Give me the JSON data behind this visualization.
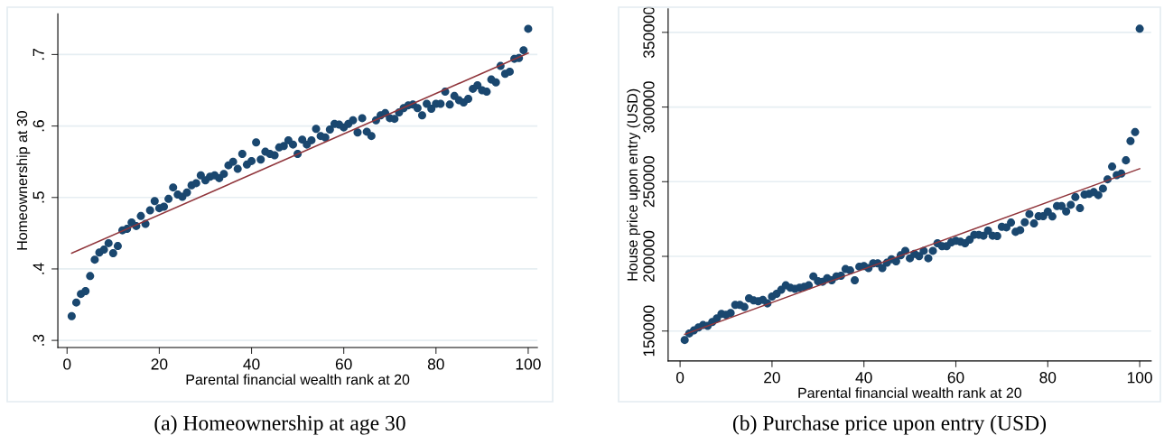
{
  "chart_data": [
    {
      "type": "scatter",
      "title": "(a) Homeownership at age 30",
      "xlabel": "Parental financial wealth rank at 20",
      "ylabel": "Homeownership at 30",
      "xlim": [
        -2,
        102
      ],
      "xticks": [
        0,
        20,
        40,
        60,
        80,
        100
      ],
      "ylim": [
        0.29,
        0.757
      ],
      "yticks": [
        {
          "value": 0.3,
          "label": ".3"
        },
        {
          "value": 0.4,
          "label": ".4"
        },
        {
          "value": 0.5,
          "label": ".5"
        },
        {
          "value": 0.6,
          "label": ".6"
        },
        {
          "value": 0.7,
          "label": ".7"
        }
      ],
      "grid": "y",
      "series": [
        {
          "marker": "circle",
          "color": "#1a476f",
          "x": [
            1,
            2,
            3,
            4,
            5,
            6,
            7,
            8,
            9,
            10,
            11,
            12,
            13,
            14,
            15,
            16,
            17,
            18,
            19,
            20,
            21,
            22,
            23,
            24,
            25,
            26,
            27,
            28,
            29,
            30,
            31,
            32,
            33,
            34,
            35,
            36,
            37,
            38,
            39,
            40,
            41,
            42,
            43,
            44,
            45,
            46,
            47,
            48,
            49,
            50,
            51,
            52,
            53,
            54,
            55,
            56,
            57,
            58,
            59,
            60,
            61,
            62,
            63,
            64,
            65,
            66,
            67,
            68,
            69,
            70,
            71,
            72,
            73,
            74,
            75,
            76,
            77,
            78,
            79,
            80,
            81,
            82,
            83,
            84,
            85,
            86,
            87,
            88,
            89,
            90,
            91,
            92,
            93,
            94,
            95,
            96,
            97,
            98,
            99,
            100
          ],
          "values": [
            0.334,
            0.353,
            0.365,
            0.369,
            0.39,
            0.413,
            0.423,
            0.427,
            0.436,
            0.422,
            0.432,
            0.454,
            0.456,
            0.465,
            0.46,
            0.474,
            0.463,
            0.482,
            0.495,
            0.485,
            0.487,
            0.498,
            0.514,
            0.504,
            0.501,
            0.507,
            0.517,
            0.52,
            0.531,
            0.524,
            0.529,
            0.531,
            0.527,
            0.533,
            0.545,
            0.55,
            0.54,
            0.561,
            0.546,
            0.551,
            0.577,
            0.553,
            0.564,
            0.561,
            0.559,
            0.57,
            0.572,
            0.58,
            0.574,
            0.561,
            0.581,
            0.574,
            0.58,
            0.596,
            0.586,
            0.584,
            0.595,
            0.603,
            0.602,
            0.598,
            0.603,
            0.608,
            0.591,
            0.611,
            0.592,
            0.586,
            0.608,
            0.615,
            0.618,
            0.611,
            0.61,
            0.619,
            0.625,
            0.629,
            0.63,
            0.625,
            0.615,
            0.631,
            0.624,
            0.631,
            0.631,
            0.648,
            0.63,
            0.642,
            0.636,
            0.633,
            0.638,
            0.652,
            0.657,
            0.65,
            0.648,
            0.665,
            0.661,
            0.684,
            0.673,
            0.676,
            0.694,
            0.695,
            0.706,
            0.736
          ]
        },
        {
          "type": "line",
          "marker": "none",
          "color": "#90353b",
          "x": [
            1,
            100
          ],
          "values": [
            0.422,
            0.702
          ]
        }
      ]
    },
    {
      "type": "scatter",
      "title": "(b) Purchase price upon entry (USD)",
      "xlabel": "Parental financial wealth rank at 20",
      "ylabel": "House price upon entry (USD)",
      "xlim": [
        -2.6,
        102.5
      ],
      "xticks": [
        0,
        20,
        40,
        60,
        80,
        100
      ],
      "ylim": [
        130000,
        365700
      ],
      "yticks": [
        150000,
        200000,
        250000,
        300000,
        350000
      ],
      "grid": "y",
      "series": [
        {
          "marker": "circle",
          "color": "#1a476f",
          "x": [
            1,
            2,
            3,
            4,
            5,
            6,
            7,
            8,
            9,
            10,
            11,
            12,
            13,
            14,
            15,
            16,
            17,
            18,
            19,
            20,
            21,
            22,
            23,
            24,
            25,
            26,
            27,
            28,
            29,
            30,
            31,
            32,
            33,
            34,
            35,
            36,
            37,
            38,
            39,
            40,
            41,
            42,
            43,
            44,
            45,
            46,
            47,
            48,
            49,
            50,
            51,
            52,
            53,
            54,
            55,
            56,
            57,
            58,
            59,
            60,
            61,
            62,
            63,
            64,
            65,
            66,
            67,
            68,
            69,
            70,
            71,
            72,
            73,
            74,
            75,
            76,
            77,
            78,
            79,
            80,
            81,
            82,
            83,
            84,
            85,
            86,
            87,
            88,
            89,
            90,
            91,
            92,
            93,
            94,
            95,
            96,
            97,
            98,
            99,
            100
          ],
          "values": [
            144000,
            148400,
            150400,
            152400,
            154000,
            153400,
            156000,
            158500,
            161500,
            160900,
            162100,
            167500,
            167500,
            166100,
            171900,
            170500,
            169900,
            170900,
            168500,
            173100,
            174900,
            177600,
            180600,
            179000,
            178200,
            179000,
            179600,
            180600,
            186600,
            183400,
            183000,
            185400,
            184000,
            186600,
            187000,
            191500,
            190600,
            184000,
            193100,
            193500,
            192100,
            195300,
            195300,
            192100,
            195700,
            198100,
            196700,
            200700,
            203700,
            198700,
            201700,
            200100,
            203700,
            198700,
            203700,
            208800,
            206800,
            206800,
            209400,
            210400,
            209800,
            208800,
            211200,
            214400,
            214400,
            213800,
            217200,
            213800,
            213600,
            219800,
            219400,
            222600,
            216400,
            217600,
            222800,
            228300,
            222000,
            226900,
            226900,
            229900,
            226700,
            233700,
            233700,
            230100,
            234500,
            239700,
            232300,
            241400,
            241800,
            243000,
            241000,
            245400,
            251600,
            260100,
            254400,
            255400,
            264300,
            277200,
            283200,
            352400
          ]
        },
        {
          "type": "line",
          "marker": "none",
          "color": "#90353b",
          "x": [
            1,
            100
          ],
          "values": [
            147800,
            258700
          ]
        }
      ]
    }
  ]
}
